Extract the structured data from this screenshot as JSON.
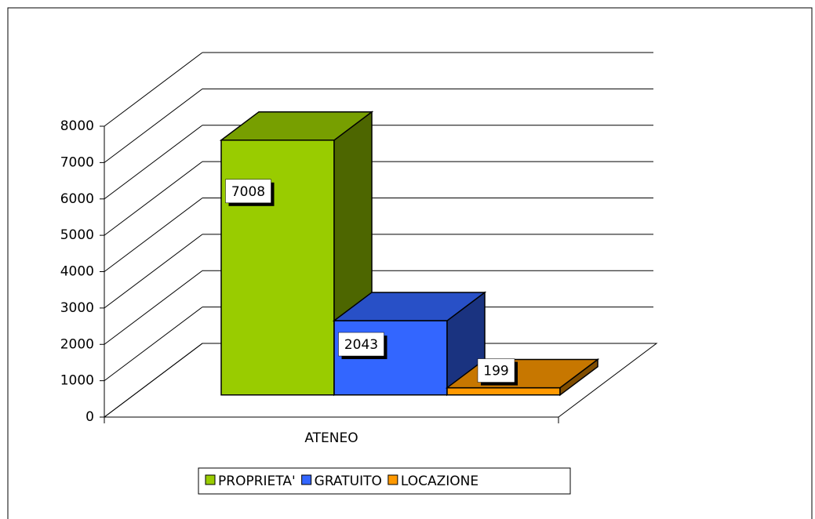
{
  "chart_data": {
    "type": "bar3d",
    "categories": [
      "ATENEO"
    ],
    "series": [
      {
        "name": "PROPRIETA'",
        "color": "#99cc00",
        "values": [
          7008
        ]
      },
      {
        "name": "GRATUITO",
        "color": "#3366ff",
        "values": [
          2043
        ]
      },
      {
        "name": "LOCAZIONE",
        "color": "#ff9900",
        "values": [
          199
        ]
      }
    ],
    "ylim": [
      0,
      8000
    ],
    "yticks": [
      0,
      1000,
      2000,
      3000,
      4000,
      5000,
      6000,
      7000,
      8000
    ],
    "grid": true,
    "legend": "bottom"
  }
}
